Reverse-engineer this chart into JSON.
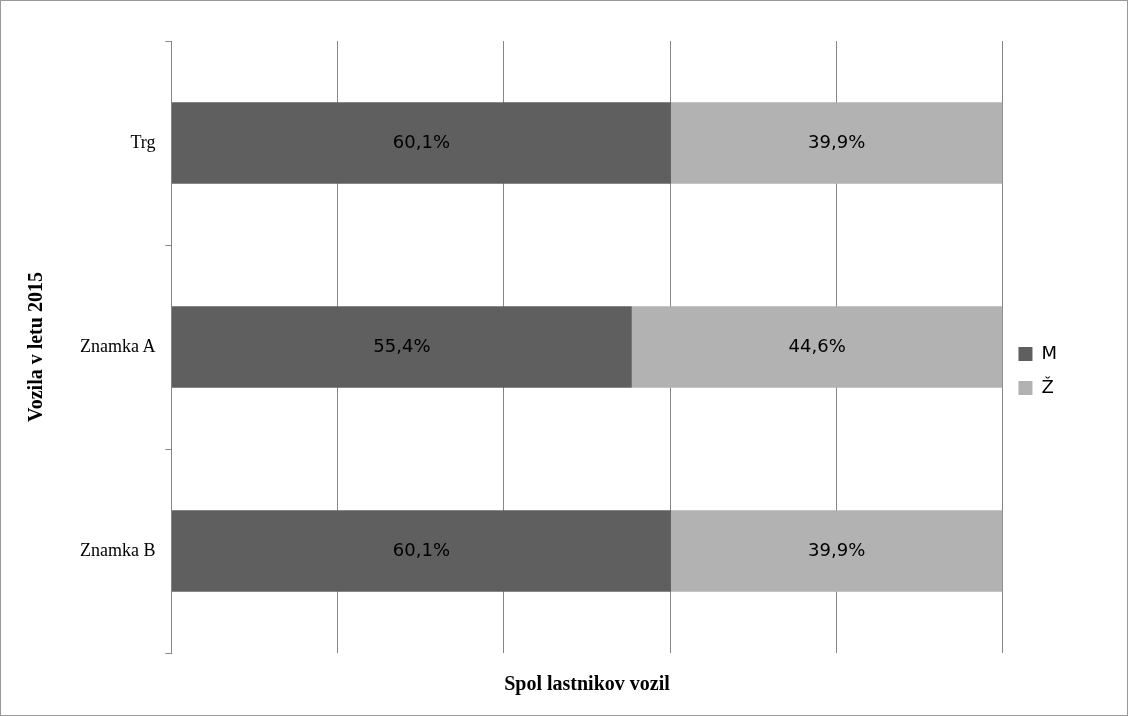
{
  "chart_data": {
    "type": "bar",
    "orientation": "horizontal",
    "stacked": true,
    "xlabel": "Spol lastnikov vozil",
    "ylabel": "Vozila v letu 2015",
    "categories": [
      "Trg",
      "Znamka A",
      "Znamka B"
    ],
    "series": [
      {
        "name": "M",
        "color": "#5f5f5f",
        "values": [
          60.1,
          55.4,
          60.1
        ],
        "value_labels": [
          "60,1%",
          "55,4%",
          "60,1%"
        ]
      },
      {
        "name": "Ž",
        "color": "#b2b2b2",
        "values": [
          39.9,
          44.6,
          39.9
        ],
        "value_labels": [
          "39,9%",
          "44,6%",
          "39,9%"
        ]
      }
    ],
    "grid": "x",
    "legend": "right",
    "tick_labels": "y"
  }
}
